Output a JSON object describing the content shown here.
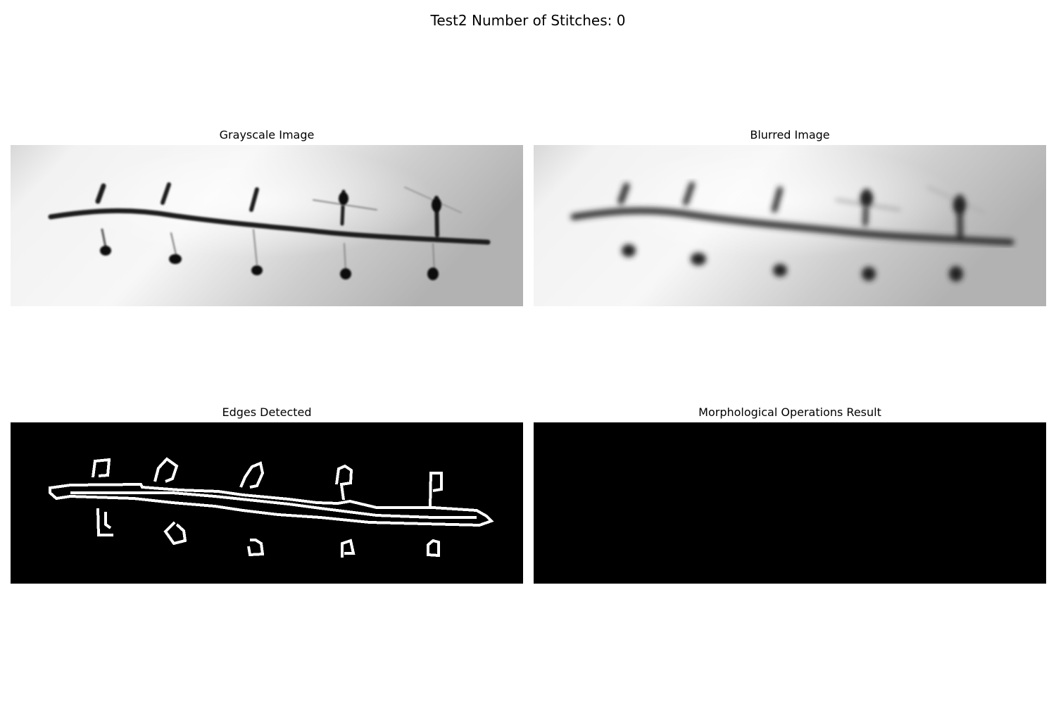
{
  "figure": {
    "title": "Test2 Number of Stitches: 0"
  },
  "panels": {
    "grayscale": {
      "title": "Grayscale Image"
    },
    "blurred": {
      "title": "Blurred Image"
    },
    "edges": {
      "title": "Edges Detected"
    },
    "morph": {
      "title": "Morphological Operations Result"
    }
  }
}
